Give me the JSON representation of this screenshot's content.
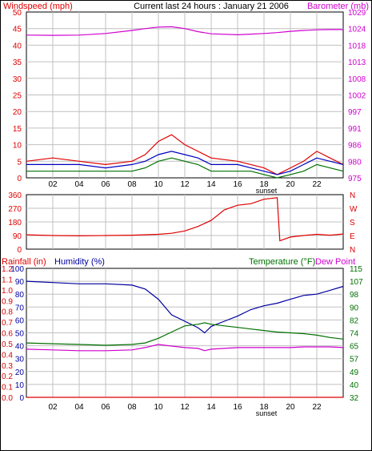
{
  "header": {
    "left_label": "Windspeed (mph)",
    "center_title": "Current last 24 hours : January 21 2006",
    "right_label": "Barometer (mb)"
  },
  "colors": {
    "frame": "#000000",
    "grid": "#c0c0c0",
    "wind": "#e00000",
    "gust_avg": "#0000c0",
    "wind_low": "#007000",
    "barometer": "#d000d0",
    "direction": "#e00000",
    "rain": "#e00000",
    "humidity": "#0000a0",
    "temperature": "#007000",
    "dewpoint": "#d000d0"
  },
  "chart_data": [
    {
      "type": "line",
      "title": "Current last 24 hours : January 21 2006",
      "x_ticks": [
        "02",
        "04",
        "06",
        "08",
        "10",
        "12",
        "14",
        "16",
        "18",
        "20",
        "22"
      ],
      "x_annotation": "sunset",
      "ylabel_left": "Windspeed (mph)",
      "ylabel_right": "Barometer (mb)",
      "ylim_left": [
        0,
        50
      ],
      "ylim_right": [
        975,
        1029
      ],
      "yticks_left": [
        "0",
        "5",
        "10",
        "15",
        "20",
        "25",
        "30",
        "35",
        "40",
        "45",
        "50"
      ],
      "yticks_right": [
        "975",
        "980",
        "986",
        "991",
        "997",
        "1002",
        "1008",
        "1013",
        "1018",
        "1024",
        "1029"
      ],
      "x": [
        0,
        2,
        4,
        6,
        8,
        9,
        10,
        11,
        12,
        13,
        14,
        16,
        17,
        18,
        19,
        20,
        21,
        22,
        23,
        24
      ],
      "series": [
        {
          "name": "Windspeed (mph)",
          "axis": "left",
          "values": [
            5,
            6,
            5,
            4,
            5,
            7,
            11,
            13,
            10,
            8,
            6,
            5,
            4,
            3,
            1,
            3,
            5,
            8,
            6,
            4
          ]
        },
        {
          "name": "Barometer (mb)",
          "axis": "right",
          "values": [
            1021.5,
            1021.4,
            1021.5,
            1022,
            1023,
            1023.6,
            1024.1,
            1024.2,
            1023.6,
            1022.6,
            1021.9,
            1021.6,
            1021.8,
            1022,
            1022.3,
            1022.7,
            1023.0,
            1023.2,
            1023.3,
            1023.3
          ]
        },
        {
          "name": "Average",
          "axis": "left",
          "values": [
            4,
            4,
            4,
            3,
            4,
            5,
            7,
            8,
            7,
            6,
            4,
            4,
            3,
            2,
            1,
            2,
            4,
            6,
            5,
            4
          ]
        },
        {
          "name": "Low",
          "axis": "left",
          "values": [
            2,
            2,
            2,
            2,
            2,
            3,
            5,
            6,
            5,
            4,
            2,
            2,
            2,
            1,
            0,
            1,
            2,
            4,
            3,
            2
          ]
        }
      ],
      "grid": true
    },
    {
      "type": "line",
      "x_ticks": [],
      "yticks_left": [
        "0",
        "90",
        "180",
        "270",
        "360"
      ],
      "yticks_right": [
        "N",
        "E",
        "S",
        "W",
        "N"
      ],
      "ylim_left": [
        0,
        360
      ],
      "x": [
        0,
        2,
        4,
        6,
        8,
        10,
        11,
        12,
        13,
        14,
        15,
        16,
        17,
        18,
        19,
        19.2,
        20,
        21,
        22,
        23,
        24
      ],
      "series": [
        {
          "name": "Wind direction",
          "values": [
            95,
            90,
            88,
            90,
            92,
            98,
            105,
            120,
            150,
            190,
            260,
            290,
            300,
            330,
            340,
            55,
            80,
            90,
            98,
            92,
            100
          ]
        }
      ],
      "grid": true
    },
    {
      "type": "line",
      "x_ticks": [
        "02",
        "04",
        "06",
        "08",
        "10",
        "12",
        "14",
        "16",
        "18",
        "20",
        "22"
      ],
      "x_annotation": "sunset",
      "legend": [
        "Rainfall (in)",
        "Humidity (%)",
        "Temperature (°F)",
        "Dew Point"
      ],
      "yticks_left_outer": [
        "0.0",
        "0.1",
        "0.2",
        "0.3",
        "0.4",
        "0.5",
        "0.6",
        "0.7",
        "0.8",
        "0.9",
        "1.0",
        "1.1",
        "1.2"
      ],
      "yticks_left_inner": [
        "0",
        "10",
        "20",
        "30",
        "40",
        "50",
        "60",
        "70",
        "80",
        "90",
        "100"
      ],
      "yticks_right": [
        "32",
        "40",
        "49",
        "57",
        "65",
        "74",
        "82",
        "90",
        "98",
        "107",
        "115"
      ],
      "ylim_humidity": [
        0,
        100
      ],
      "ylim_temperature": [
        32,
        115
      ],
      "x": [
        0,
        2,
        4,
        6,
        8,
        9,
        10,
        11,
        12,
        13,
        13.5,
        14,
        15,
        16,
        17,
        18,
        19,
        20,
        21,
        22,
        23,
        24
      ],
      "series": [
        {
          "name": "Humidity (%)",
          "axis": "humidity",
          "values": [
            90,
            89,
            88,
            88,
            87,
            84,
            76,
            64,
            59,
            54,
            50,
            55,
            59,
            63,
            68,
            71,
            73,
            76,
            79,
            80,
            83,
            86
          ]
        },
        {
          "name": "Temperature (°F)",
          "axis": "temperature",
          "values": [
            67,
            66.5,
            66,
            65.5,
            66,
            67,
            70,
            74,
            78,
            79,
            80,
            79,
            78,
            77,
            76,
            75,
            74,
            73.5,
            73,
            72,
            70.5,
            69.5
          ]
        },
        {
          "name": "Dew Point",
          "axis": "temperature",
          "values": [
            63,
            62.5,
            62,
            62,
            62.5,
            64,
            66,
            65,
            64,
            63.5,
            62,
            63,
            63.5,
            64,
            64,
            64,
            64,
            64,
            64.5,
            64.5,
            64.5,
            64
          ]
        },
        {
          "name": "Rainfall (in)",
          "axis": "rain",
          "values": [
            0,
            0,
            0,
            0,
            0,
            0,
            0,
            0,
            0,
            0,
            0,
            0,
            0,
            0,
            0,
            0,
            0,
            0,
            0,
            0,
            0,
            0
          ]
        }
      ],
      "grid": true
    }
  ]
}
